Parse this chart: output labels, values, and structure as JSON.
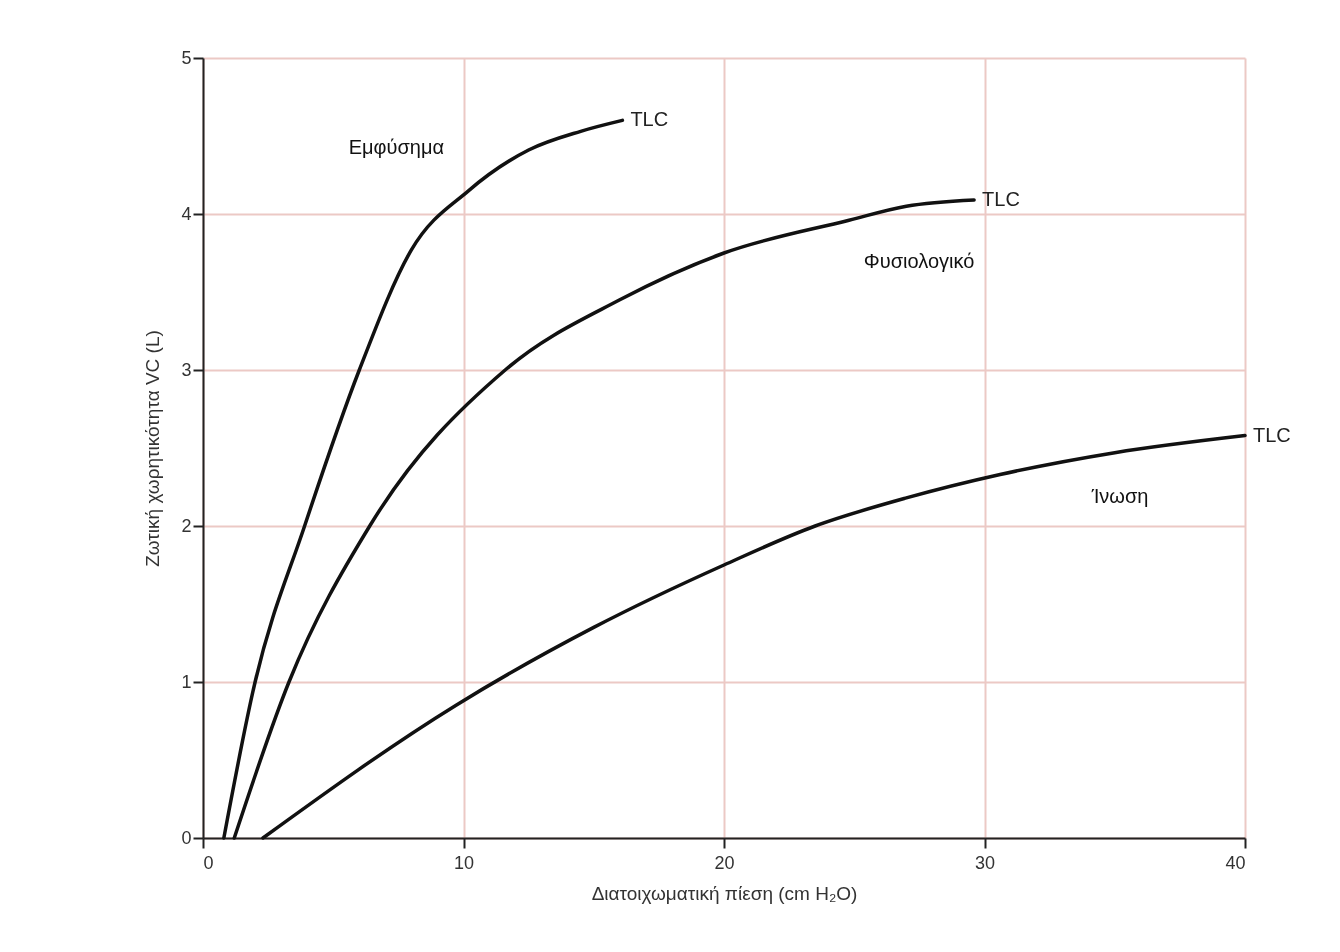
{
  "chart_data": {
    "type": "line",
    "xlabel": "Διατοιχωματική πίεση (cm H₂O)",
    "ylabel": "Ζωτική χωρητικότητα VC (L)",
    "xlim": [
      0,
      40
    ],
    "xticks": [
      0,
      10,
      20,
      30,
      40
    ],
    "ylim": [
      0,
      5
    ],
    "yticks": [
      0,
      1,
      2,
      3,
      4,
      5
    ],
    "grid": true,
    "legend": false,
    "marker": "none",
    "line_style": "solid",
    "series": [
      {
        "name": "Εμφύσημα",
        "color": "#111111",
        "x": [
          0.8,
          2.0,
          3.9,
          6.0,
          8.0,
          10.2,
          12.5,
          14.5,
          16.1
        ],
        "values": [
          0,
          1,
          2,
          3,
          3.77,
          4.15,
          4.41,
          4.53,
          4.6
        ]
      },
      {
        "name": "Φυσιολογικό",
        "color": "#111111",
        "x": [
          1.2,
          3.3,
          6.4,
          11.6,
          16,
          20,
          24.8,
          27,
          29.6
        ],
        "values": [
          0,
          1,
          2,
          3,
          3.45,
          3.75,
          3.96,
          4.05,
          4.09
        ]
      },
      {
        "name": "Ίνωση",
        "color": "#111111",
        "x": [
          2.3,
          9.7,
          15,
          20,
          23.5,
          27,
          30.6,
          35,
          40
        ],
        "values": [
          0,
          0.85,
          1.35,
          1.75,
          2.0,
          2.18,
          2.33,
          2.47,
          2.58
        ]
      }
    ],
    "annotations": [
      {
        "text": "TLC",
        "x": 16.1,
        "y": 4.6
      },
      {
        "text": "TLC",
        "x": 29.6,
        "y": 4.09
      },
      {
        "text": "TLC",
        "x": 40,
        "y": 2.58
      }
    ]
  }
}
